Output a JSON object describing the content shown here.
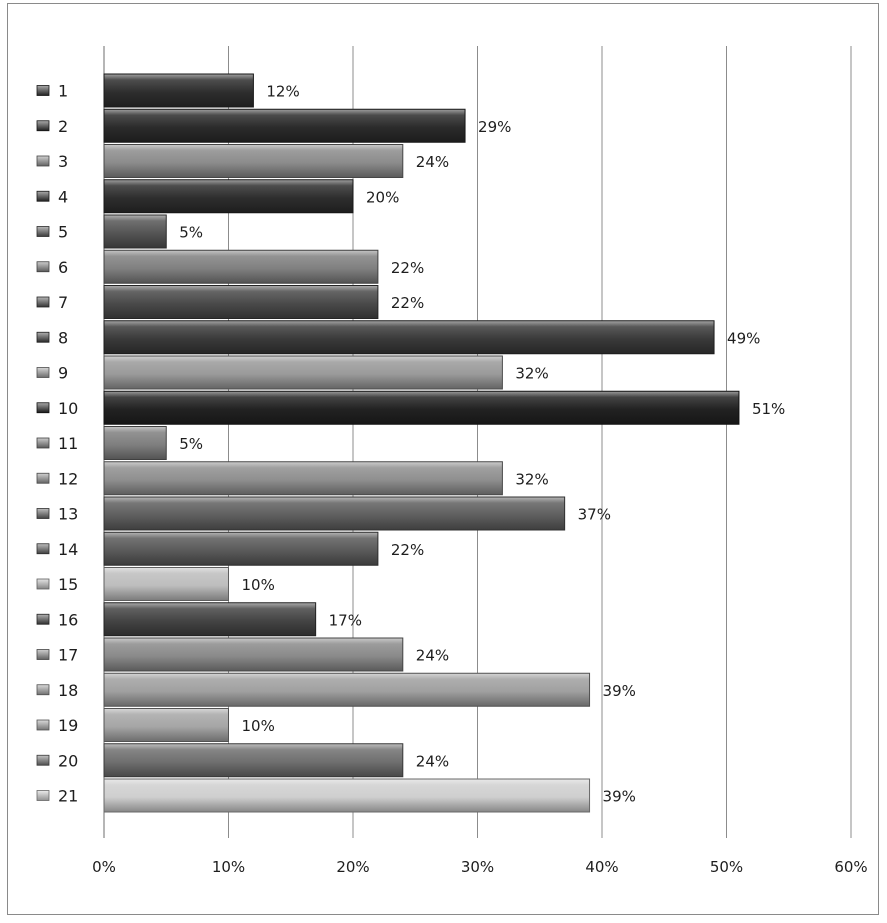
{
  "chart_data": {
    "type": "bar",
    "orientation": "horizontal",
    "title": "",
    "xlabel": "",
    "ylabel": "",
    "xlim": [
      0,
      60
    ],
    "x_ticks": [
      "0%",
      "10%",
      "20%",
      "30%",
      "40%",
      "50%",
      "60%"
    ],
    "grid": "vertical",
    "legend": "left",
    "categories": [
      "1",
      "2",
      "3",
      "4",
      "5",
      "6",
      "7",
      "8",
      "9",
      "10",
      "11",
      "12",
      "13",
      "14",
      "15",
      "16",
      "17",
      "18",
      "19",
      "20",
      "21"
    ],
    "values": [
      12,
      29,
      24,
      20,
      5,
      22,
      22,
      49,
      32,
      51,
      5,
      32,
      37,
      22,
      10,
      17,
      24,
      39,
      10,
      24,
      39
    ],
    "value_labels": [
      "12%",
      "29%",
      "24%",
      "20%",
      "5%",
      "22%",
      "22%",
      "49%",
      "32%",
      "51%",
      "5%",
      "32%",
      "37%",
      "22%",
      "10%",
      "17%",
      "24%",
      "39%",
      "10%",
      "24%",
      "39%"
    ],
    "bar_colors": [
      "#2e2e2e",
      "#2b2b2b",
      "#8c8c8c",
      "#2e2e2e",
      "#555555",
      "#808080",
      "#4a4a4a",
      "#3a3a3a",
      "#9a9a9a",
      "#222222",
      "#7f7f7f",
      "#8f8f8f",
      "#5f5f5f",
      "#5a5a5a",
      "#bdbdbd",
      "#444444",
      "#8a8a8a",
      "#a0a0a0",
      "#a6a6a6",
      "#6f6f6f",
      "#cfcfcf"
    ]
  }
}
